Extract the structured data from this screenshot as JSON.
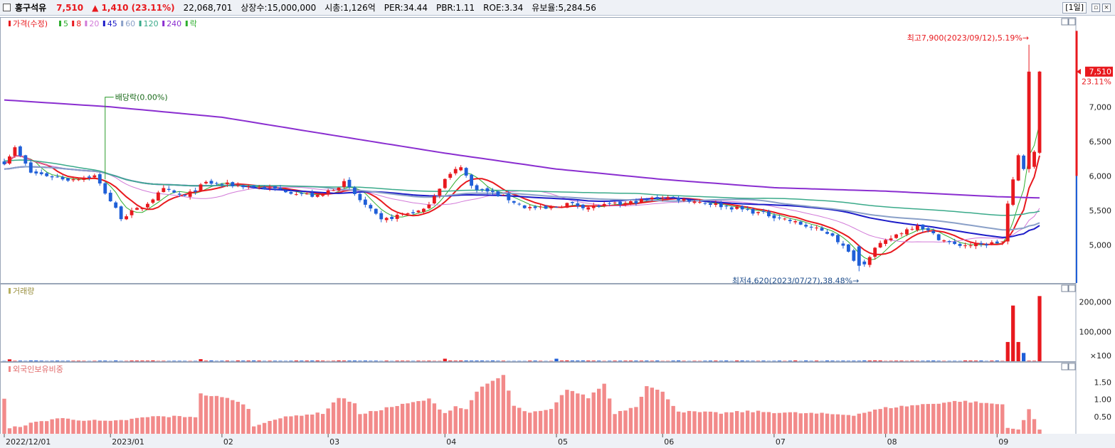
{
  "header": {
    "stock_name": "흥구석유",
    "price": "7,510",
    "change": "▲ 1,410 (23.11%)",
    "volume": "22,068,701",
    "shares": "상장수:15,000,000",
    "market_cap": "시총:1,126억",
    "per": "PER:34.44",
    "pbr": "PBR:1.11",
    "roe": "ROE:3.34",
    "float_ratio": "유보율:5,284.56",
    "period": "[1일]"
  },
  "colors": {
    "up": "#e8191e",
    "down": "#1f5fd8",
    "ma5": "#2fae2f",
    "ma8": "#e8191e",
    "ma20": "#d27ad8",
    "ma45": "#1c1cc8",
    "ma60": "#8aa0c8",
    "ma120": "#3aaa8a",
    "ma240": "#8a2ed0",
    "foreign": "#f28a8a"
  },
  "chart_data": [
    {
      "type": "candlestick",
      "legend": [
        {
          "label": "가격(수정)",
          "color": "#e8191e"
        },
        {
          "label": "5",
          "color": "#2fae2f"
        },
        {
          "label": "8",
          "color": "#e8191e"
        },
        {
          "label": "20",
          "color": "#d27ad8"
        },
        {
          "label": "45",
          "color": "#1c1cc8"
        },
        {
          "label": "60",
          "color": "#8aa0c8"
        },
        {
          "label": "120",
          "color": "#3aaa8a"
        },
        {
          "label": "240",
          "color": "#8a2ed0"
        },
        {
          "label": "락",
          "color": "#2fae2f"
        }
      ],
      "y_ticks": [
        "7,000",
        "6,500",
        "6,000",
        "5,500",
        "5,000"
      ],
      "y_tick_values": [
        7000,
        6500,
        6000,
        5500,
        5000
      ],
      "ylim": [
        4450,
        8300
      ],
      "x_labels": [
        "2022/12/01",
        "2023/01",
        "02",
        "03",
        "04",
        "05",
        "06",
        "07",
        "08",
        "09"
      ],
      "x_label_index": [
        0,
        20,
        41,
        61,
        83,
        104,
        124,
        145,
        166,
        187
      ],
      "current_price_label": "7,510",
      "current_change_label": "23.11%",
      "current_price": 7510,
      "annotation_high": "최고7,900(2023/09/12),5.19%→",
      "annotation_low": "최저4,620(2023/07/27),38.48%→",
      "annotation_dividend": "배당락(0.00%)",
      "high_index": 193,
      "low_index": 161,
      "dividend_index": 19,
      "price_path": [
        [
          0,
          6200
        ],
        [
          2,
          6400
        ],
        [
          5,
          6050
        ],
        [
          12,
          5950
        ],
        [
          17,
          6000
        ],
        [
          22,
          5400
        ],
        [
          26,
          5550
        ],
        [
          30,
          5800
        ],
        [
          34,
          5700
        ],
        [
          38,
          5900
        ],
        [
          46,
          5850
        ],
        [
          52,
          5800
        ],
        [
          59,
          5700
        ],
        [
          64,
          5900
        ],
        [
          67,
          5650
        ],
        [
          71,
          5350
        ],
        [
          75,
          5450
        ],
        [
          79,
          5500
        ],
        [
          83,
          5950
        ],
        [
          86,
          6150
        ],
        [
          88,
          5850
        ],
        [
          94,
          5700
        ],
        [
          98,
          5550
        ],
        [
          102,
          5520
        ],
        [
          106,
          5600
        ],
        [
          110,
          5550
        ],
        [
          117,
          5600
        ],
        [
          124,
          5700
        ],
        [
          129,
          5650
        ],
        [
          133,
          5600
        ],
        [
          140,
          5500
        ],
        [
          146,
          5400
        ],
        [
          152,
          5250
        ],
        [
          156,
          5150
        ],
        [
          160,
          4800
        ],
        [
          162,
          4750
        ],
        [
          164,
          4950
        ],
        [
          168,
          5150
        ],
        [
          172,
          5300
        ],
        [
          176,
          5100
        ],
        [
          179,
          5000
        ],
        [
          184,
          5000
        ],
        [
          188,
          5050
        ],
        [
          189,
          5600
        ],
        [
          191,
          6300
        ],
        [
          192,
          6100
        ],
        [
          193,
          6150
        ],
        [
          194,
          6350
        ],
        [
          195,
          7510
        ]
      ],
      "ma_periods": [
        5,
        8,
        20,
        45,
        60,
        120
      ],
      "ma240_path": [
        [
          0,
          7100
        ],
        [
          20,
          7000
        ],
        [
          41,
          6850
        ],
        [
          61,
          6600
        ],
        [
          83,
          6330
        ],
        [
          104,
          6100
        ],
        [
          124,
          5950
        ],
        [
          145,
          5830
        ],
        [
          166,
          5780
        ],
        [
          187,
          5700
        ],
        [
          196,
          5680
        ]
      ]
    },
    {
      "type": "bar",
      "legend": [
        {
          "label": "거래량",
          "color": "#b8b060"
        }
      ],
      "y_ticks": [
        "200,000",
        "100,000",
        "×100"
      ],
      "y_tick_values": [
        200000,
        100000,
        10000
      ],
      "ylim": [
        0,
        228000
      ],
      "base": 1800,
      "spikes": [
        [
          1,
          6500
        ],
        [
          37,
          7000
        ],
        [
          83,
          8500
        ],
        [
          104,
          8500
        ],
        [
          189,
          65000
        ],
        [
          190,
          188000
        ],
        [
          191,
          65000
        ],
        [
          192,
          28000
        ],
        [
          195,
          220000
        ]
      ]
    },
    {
      "type": "bar",
      "legend": [
        {
          "label": "외국인보유비중",
          "color": "#f28a8a"
        }
      ],
      "y_ticks": [
        "1.50",
        "1.00",
        "0.50"
      ],
      "y_tick_values": [
        1.5,
        1.0,
        0.5
      ],
      "ylim": [
        0,
        2.0
      ],
      "ratio_path": [
        [
          0,
          1.0
        ],
        [
          1,
          0.15
        ],
        [
          5,
          0.3
        ],
        [
          10,
          0.45
        ],
        [
          20,
          0.35
        ],
        [
          28,
          0.5
        ],
        [
          36,
          0.5
        ],
        [
          37,
          1.15
        ],
        [
          43,
          1.0
        ],
        [
          46,
          0.75
        ],
        [
          47,
          0.2
        ],
        [
          50,
          0.4
        ],
        [
          56,
          0.55
        ],
        [
          60,
          0.6
        ],
        [
          63,
          1.05
        ],
        [
          66,
          0.9
        ],
        [
          67,
          0.55
        ],
        [
          72,
          0.75
        ],
        [
          80,
          1.0
        ],
        [
          83,
          0.6
        ],
        [
          85,
          0.8
        ],
        [
          87,
          0.7
        ],
        [
          89,
          1.25
        ],
        [
          94,
          1.7
        ],
        [
          96,
          0.8
        ],
        [
          99,
          0.6
        ],
        [
          103,
          0.7
        ],
        [
          106,
          1.3
        ],
        [
          110,
          1.05
        ],
        [
          113,
          1.45
        ],
        [
          115,
          0.6
        ],
        [
          119,
          0.8
        ],
        [
          121,
          1.4
        ],
        [
          124,
          1.2
        ],
        [
          127,
          0.65
        ],
        [
          135,
          0.6
        ],
        [
          140,
          0.65
        ],
        [
          160,
          0.55
        ],
        [
          166,
          0.75
        ],
        [
          173,
          0.85
        ],
        [
          180,
          0.95
        ],
        [
          188,
          0.85
        ],
        [
          189,
          0.2
        ],
        [
          191,
          0.1
        ],
        [
          193,
          0.7
        ],
        [
          195,
          0.15
        ],
        [
          196,
          0.15
        ]
      ]
    }
  ]
}
